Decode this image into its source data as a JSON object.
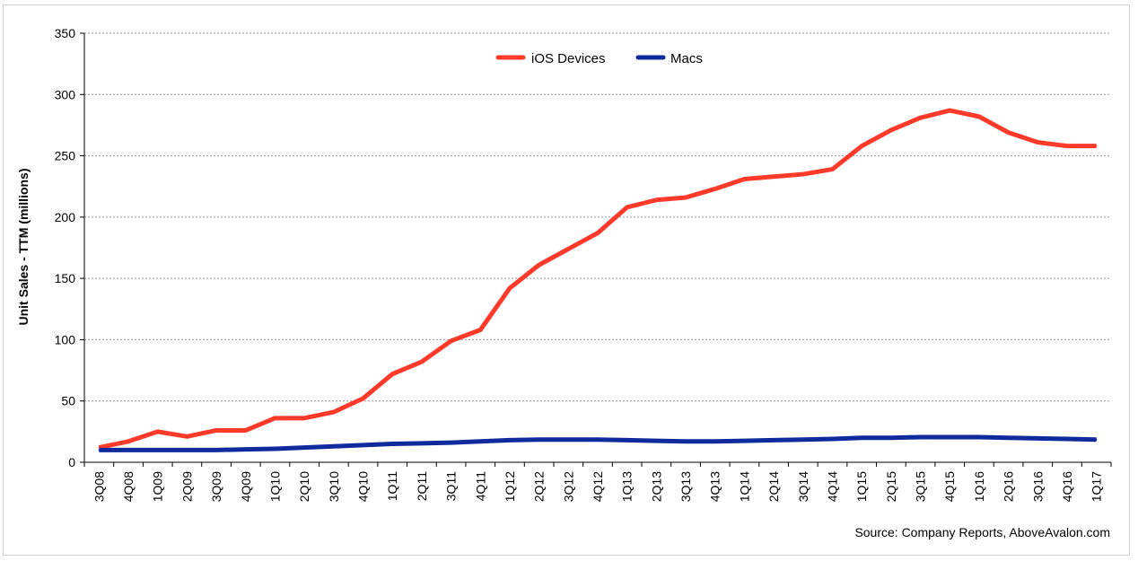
{
  "chart_data": {
    "type": "line",
    "title": "",
    "xlabel": "",
    "ylabel": "Unit Sales  - TTM (millions)",
    "ylim": [
      0,
      350
    ],
    "yticks": [
      "0",
      "50",
      "100",
      "150",
      "200",
      "250",
      "300",
      "350"
    ],
    "grid": true,
    "legend_position": "top-center",
    "categories": [
      "3Q08",
      "4Q08",
      "1Q09",
      "2Q09",
      "3Q09",
      "4Q09",
      "1Q10",
      "2Q10",
      "3Q10",
      "4Q10",
      "1Q11",
      "2Q11",
      "3Q11",
      "4Q11",
      "1Q12",
      "2Q12",
      "3Q12",
      "4Q12",
      "1Q13",
      "2Q13",
      "3Q13",
      "4Q13",
      "1Q14",
      "2Q14",
      "3Q14",
      "4Q14",
      "1Q15",
      "2Q15",
      "3Q15",
      "4Q15",
      "1Q16",
      "2Q16",
      "3Q16",
      "4Q16",
      "1Q17"
    ],
    "series": [
      {
        "name": "iOS Devices",
        "color": "#ff3a2a",
        "values": [
          12,
          17,
          25,
          21,
          26,
          26,
          36,
          36,
          41,
          52,
          72,
          82,
          99,
          108,
          142,
          161,
          174,
          187,
          208,
          214,
          216,
          223,
          231,
          233,
          235,
          239,
          258,
          271,
          281,
          287,
          282,
          269,
          261,
          258,
          258
        ]
      },
      {
        "name": "Macs",
        "color": "#0f2a9c",
        "values": [
          10,
          10,
          10,
          10,
          10,
          10.5,
          11,
          12,
          13,
          14,
          15,
          15.5,
          16,
          17,
          18,
          18.5,
          18.5,
          18.5,
          18,
          17.5,
          17,
          17,
          17.5,
          18,
          18.5,
          19,
          20,
          20,
          20.5,
          20.5,
          20.5,
          20,
          19.5,
          19,
          18.5
        ]
      }
    ],
    "source": "Source: Company Reports, AboveAvalon.com"
  }
}
